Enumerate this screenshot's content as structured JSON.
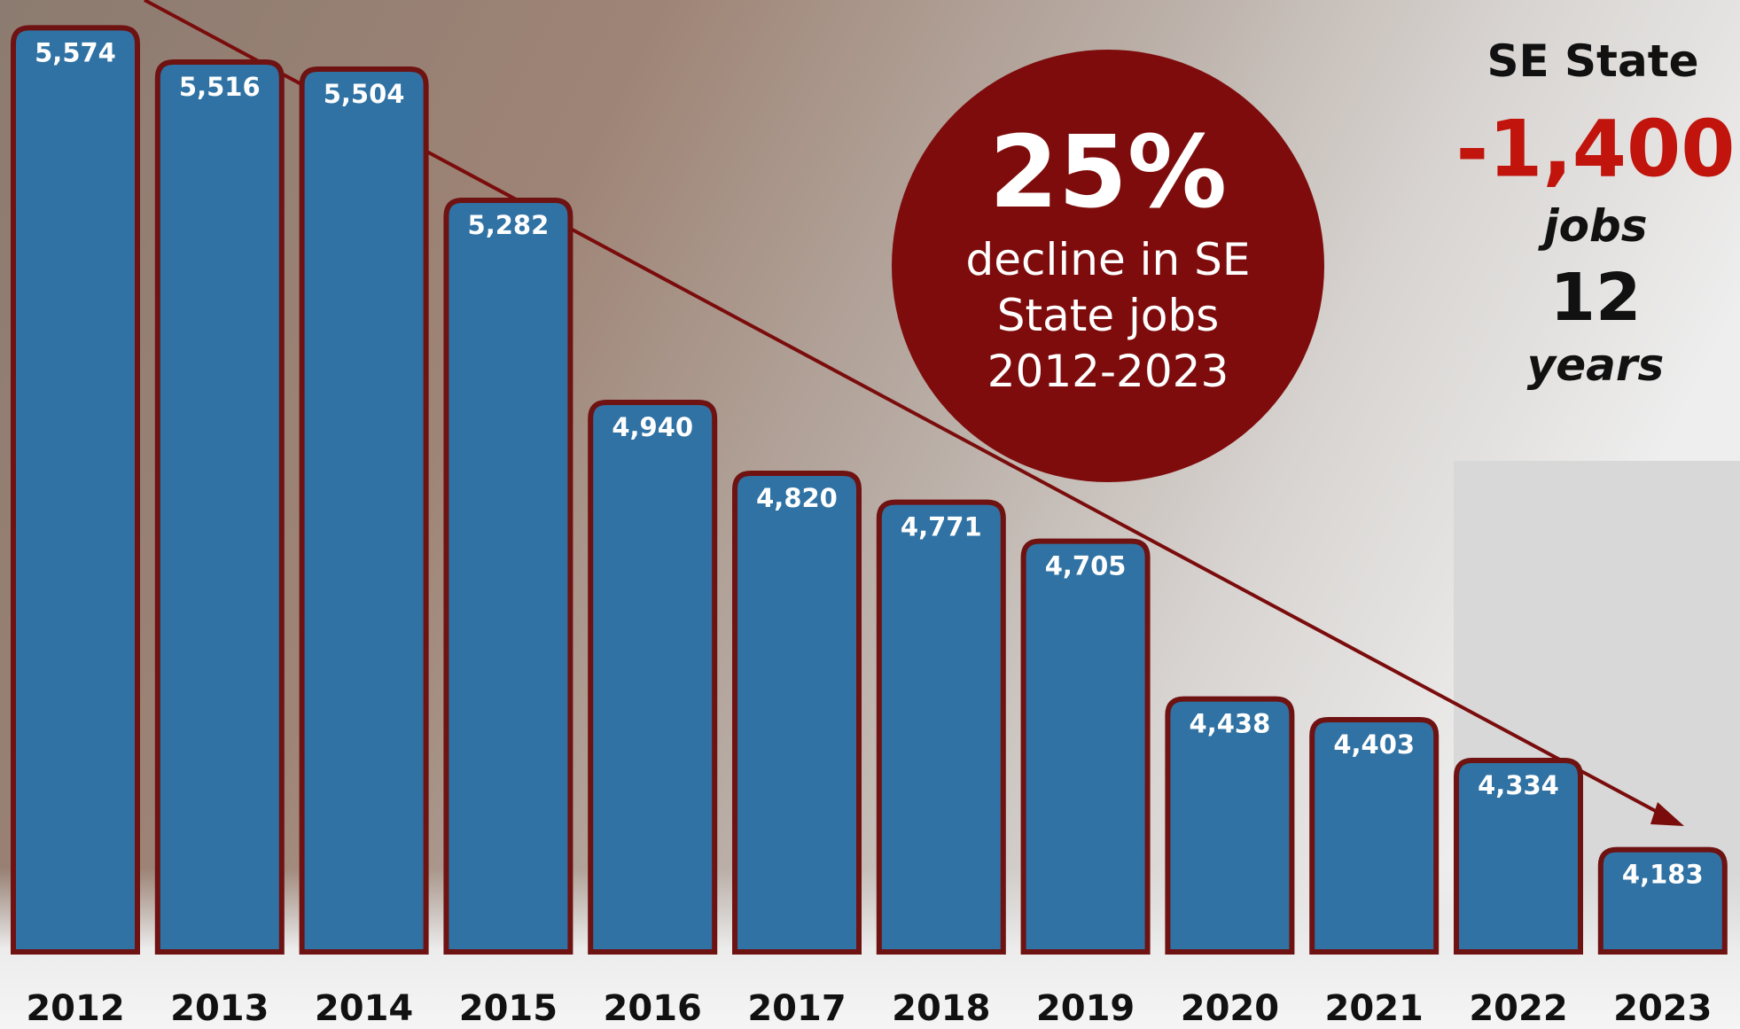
{
  "chart_data": {
    "type": "bar",
    "categories": [
      "2012",
      "2013",
      "2014",
      "2015",
      "2016",
      "2017",
      "2018",
      "2019",
      "2020",
      "2021",
      "2022",
      "2023"
    ],
    "values": [
      5574,
      5516,
      5504,
      5282,
      4940,
      4820,
      4771,
      4705,
      4438,
      4403,
      4334,
      4183
    ],
    "value_labels": [
      "5,574",
      "5,516",
      "5,504",
      "5,282",
      "4,940",
      "4,820",
      "4,771",
      "4,705",
      "4,438",
      "4,403",
      "4,334",
      "4,183"
    ],
    "color": "#2f72a3",
    "edge_color": "#6e1212",
    "ylim": [
      4010,
      5600
    ],
    "annotations": {
      "circle_big": "25%",
      "circle_lines": [
        "decline in SE",
        "State jobs",
        "2012-2023"
      ],
      "side_title": "SE State",
      "side_change": "-1,400",
      "side_unit": "jobs",
      "side_years": "12",
      "side_years_unit": "years"
    }
  }
}
